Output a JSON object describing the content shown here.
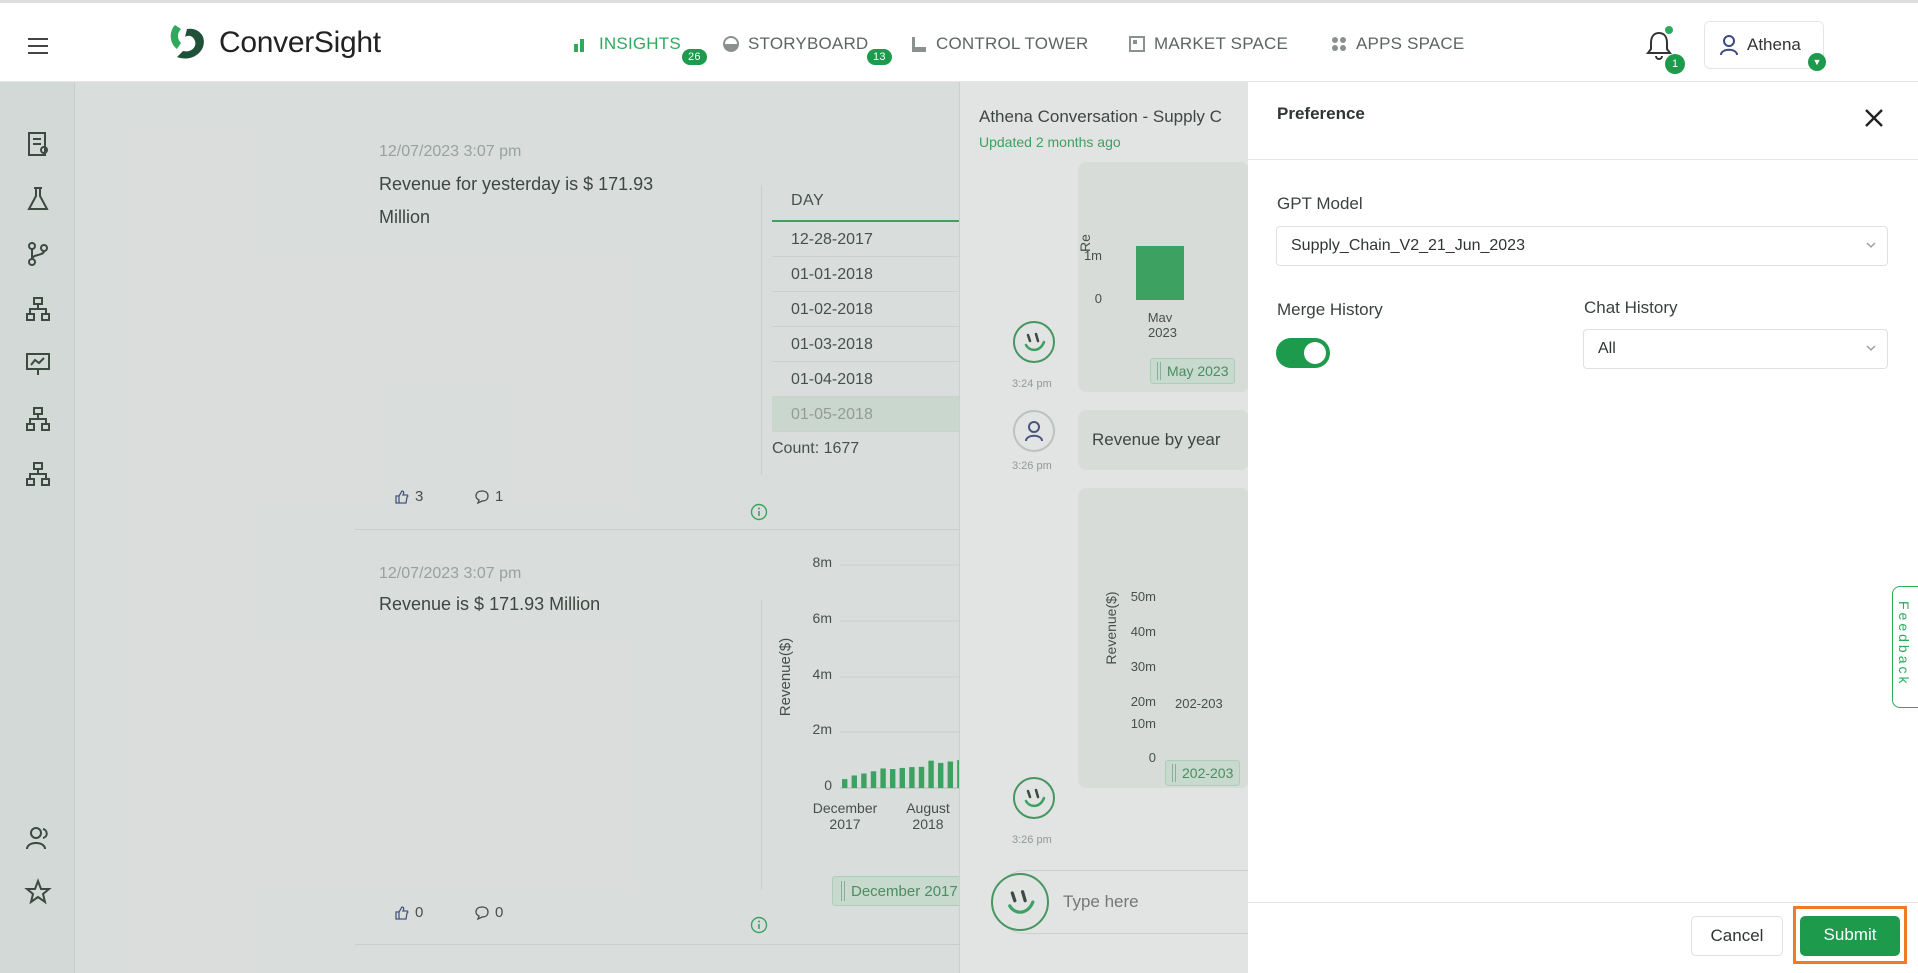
{
  "header": {
    "logo_text": "ConverSight",
    "nav": [
      {
        "label": "INSIGHTS",
        "badge": "26",
        "active": true
      },
      {
        "label": "STORYBOARD",
        "badge": "13"
      },
      {
        "label": "CONTROL TOWER"
      },
      {
        "label": "MARKET SPACE"
      },
      {
        "label": "APPS SPACE"
      }
    ],
    "notification_count": "1",
    "user_name": "Athena"
  },
  "insights": [
    {
      "timestamp": "12/07/2023 3:07 pm",
      "text_line1": "Revenue for yesterday is $ 171.93",
      "text_line2": "Million",
      "likes": "3",
      "comments": "1",
      "table": {
        "header": "DAY",
        "rows": [
          "12-28-2017",
          "01-01-2018",
          "01-02-2018",
          "01-03-2018",
          "01-04-2018",
          "01-05-2018"
        ],
        "count": "Count: 1677"
      }
    },
    {
      "timestamp": "12/07/2023 3:07 pm",
      "text": "Revenue is $ 171.93 Million",
      "likes": "0",
      "comments": "0",
      "chart": {
        "ylabel": "Revenue($)",
        "yticks": [
          "8m",
          "6m",
          "4m",
          "2m",
          "0"
        ],
        "xticks": [
          [
            "December",
            "2017"
          ],
          [
            "August",
            "2018"
          ]
        ],
        "slider_label": "December 2017"
      }
    }
  ],
  "chart_data": {
    "type": "bar",
    "ylabel": "Revenue($)",
    "ylim": [
      0,
      8000000
    ],
    "series": [
      {
        "values": [
          320000,
          450000,
          520000,
          600000,
          700000,
          680000,
          720000,
          750000,
          760000,
          980000,
          900000,
          950000,
          1000000
        ]
      }
    ]
  },
  "conversation": {
    "title": "Athena Conversation - Supply C",
    "updated": "Updated 2 months ago",
    "msg1_time": "3:24 pm",
    "chart1_yticks": [
      "1m",
      "0"
    ],
    "chart1_x": [
      "May",
      "2023"
    ],
    "chart1_slider": "May 2023",
    "chart1_ylabel_partial": "Re",
    "user_msg": "Revenue by year",
    "user_time": "3:26 pm",
    "chart2_ylabel": "Revenue($)",
    "chart2_yticks": [
      "50m",
      "40m",
      "30m",
      "20m",
      "10m",
      "0"
    ],
    "chart2_x": "202-203",
    "chart2_slider": "202-203",
    "msg2_time": "3:26 pm",
    "input_placeholder": "Type here"
  },
  "preference": {
    "title": "Preference",
    "gpt_label": "GPT Model",
    "gpt_value": "Supply_Chain_V2_21_Jun_2023",
    "merge_label": "Merge History",
    "merge_on": true,
    "chat_label": "Chat History",
    "chat_value": "All",
    "cancel": "Cancel",
    "submit": "Submit"
  },
  "feedback_label": "Feedback",
  "colors": {
    "brand": "#1d9a4b",
    "accent_light": "#2eaa5c",
    "highlight": "#f07a2a"
  }
}
